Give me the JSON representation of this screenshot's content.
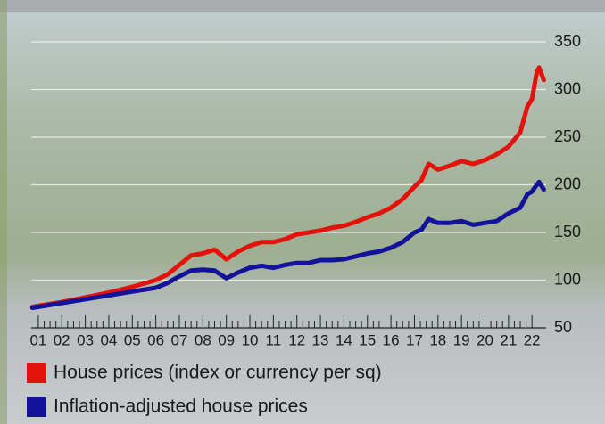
{
  "chart_data": {
    "type": "line",
    "x": [
      0.75,
      1,
      2,
      3,
      4,
      5,
      6,
      6.5,
      7,
      7.5,
      8,
      8.5,
      9,
      9.5,
      10,
      10.5,
      11,
      11.5,
      12,
      12.5,
      13,
      13.5,
      14,
      14.5,
      15,
      15.5,
      16,
      16.5,
      17,
      17.3,
      17.6,
      18,
      18.5,
      19,
      19.5,
      20,
      20.5,
      21,
      21.5,
      21.8,
      22,
      22.2,
      22.3,
      22.5
    ],
    "series": [
      {
        "name": "House prices (index or currency per sq)",
        "color": "#e3120b",
        "values": [
          72,
          73,
          77,
          82,
          87,
          93,
          100,
          106,
          116,
          126,
          128,
          132,
          122,
          130,
          136,
          140,
          140,
          143,
          148,
          150,
          152,
          155,
          157,
          161,
          166,
          170,
          176,
          185,
          198,
          205,
          222,
          216,
          220,
          225,
          222,
          226,
          232,
          240,
          255,
          282,
          290,
          318,
          323,
          310
        ]
      },
      {
        "name": "Inflation-adjusted house prices",
        "color": "#12129a",
        "values": [
          71,
          72,
          76,
          80,
          84,
          88,
          92,
          97,
          104,
          110,
          111,
          110,
          102,
          108,
          113,
          115,
          113,
          116,
          118,
          118,
          121,
          121,
          122,
          125,
          128,
          130,
          134,
          140,
          150,
          153,
          164,
          160,
          160,
          162,
          158,
          160,
          162,
          170,
          176,
          190,
          193,
          200,
          203,
          195
        ]
      }
    ],
    "xlim": [
      0.7,
      22.6
    ],
    "xticks": [
      {
        "value": 1,
        "label": "01"
      },
      {
        "value": 2,
        "label": "02"
      },
      {
        "value": 3,
        "label": "03"
      },
      {
        "value": 4,
        "label": "04"
      },
      {
        "value": 5,
        "label": "05"
      },
      {
        "value": 6,
        "label": "06"
      },
      {
        "value": 7,
        "label": "07"
      },
      {
        "value": 8,
        "label": "08"
      },
      {
        "value": 9,
        "label": "09"
      },
      10,
      11,
      12,
      13,
      14,
      15,
      16,
      17,
      18,
      19,
      20,
      21,
      22
    ],
    "ylim": [
      50,
      350
    ],
    "yticks": [
      50,
      100,
      150,
      200,
      250,
      300,
      350
    ],
    "grid": true
  }
}
